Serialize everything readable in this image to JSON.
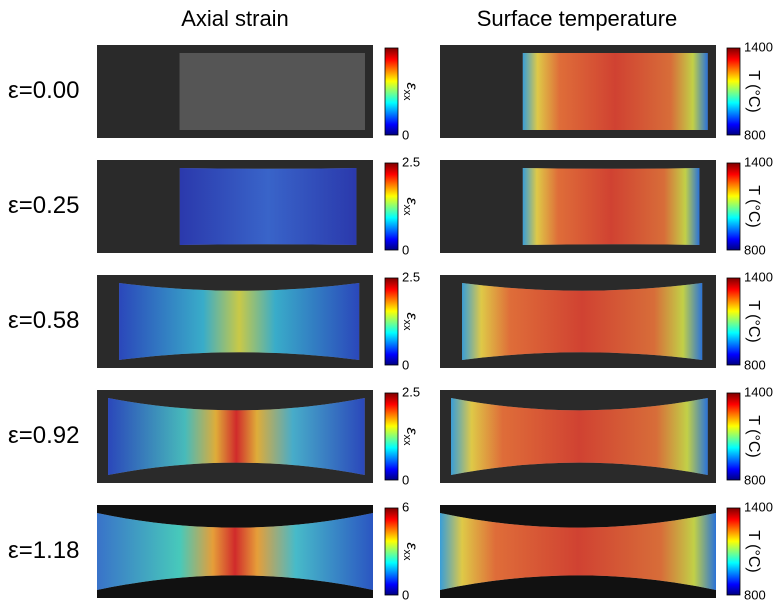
{
  "columns": [
    "Axial strain",
    "Surface temperature"
  ],
  "strain_label": {
    "symbol": "ε",
    "subscript": "xx"
  },
  "temperature_label": "T (°C)",
  "rows": [
    {
      "label": "ε=0.00",
      "strain_scale": {
        "min": 0
      },
      "temperature_scale": {
        "max": 1400,
        "min": 800
      }
    },
    {
      "label": "ε=0.25",
      "strain_scale": {
        "max": 2.5,
        "min": 0
      },
      "temperature_scale": {
        "max": 1400,
        "min": 800
      }
    },
    {
      "label": "ε=0.58",
      "strain_scale": {
        "max": 2.5,
        "min": 0
      },
      "temperature_scale": {
        "max": 1400,
        "min": 800
      }
    },
    {
      "label": "ε=0.92",
      "strain_scale": {
        "max": 2.5,
        "min": 0
      },
      "temperature_scale": {
        "max": 1400,
        "min": 800
      }
    },
    {
      "label": "ε=1.18",
      "strain_scale": {
        "max": 6,
        "min": 0
      },
      "temperature_scale": {
        "max": 1400,
        "min": 800
      }
    }
  ]
}
